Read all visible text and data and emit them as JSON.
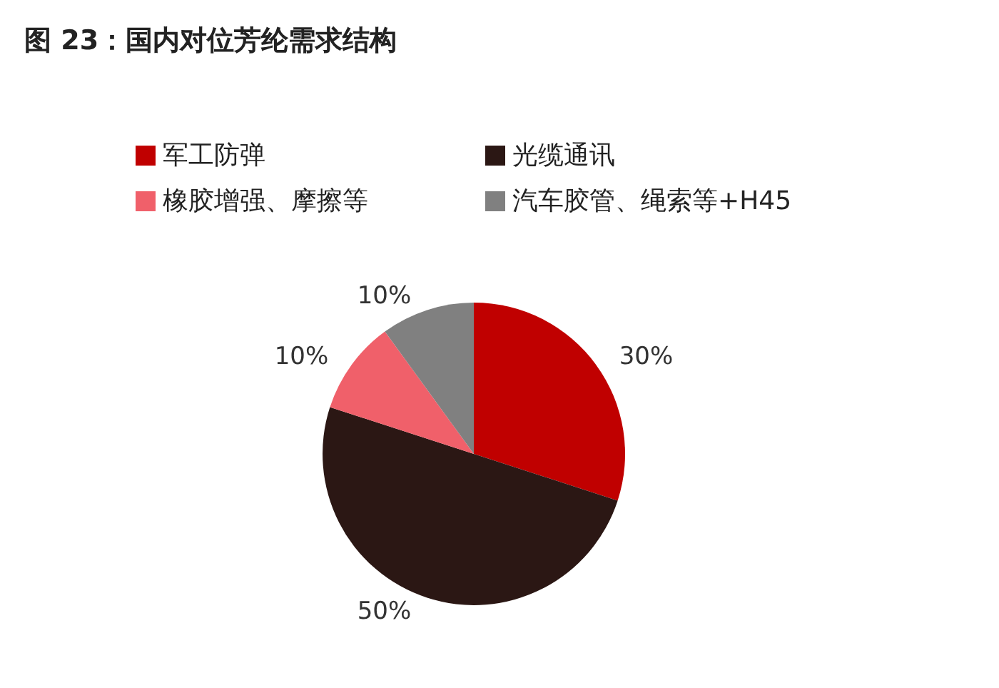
{
  "chart_data": {
    "type": "pie",
    "title": "图 23：国内对位芳纶需求结构",
    "categories": [
      "军工防弹",
      "光缆通讯",
      "橡胶增强、摩擦等",
      "汽车胶管、绳索等+H45"
    ],
    "values": [
      30,
      50,
      10,
      10
    ],
    "colors": [
      "#c00000",
      "#2b1714",
      "#f0606a",
      "#808080"
    ],
    "value_labels": [
      "30%",
      "50%",
      "10%",
      "10%"
    ],
    "legend": "top left"
  }
}
